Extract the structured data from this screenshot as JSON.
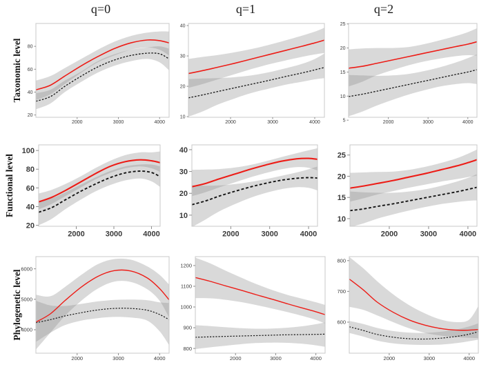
{
  "figure": {
    "background": "#ffffff",
    "colors": {
      "red_line": "#ed1c16",
      "dashed_line": "#141414",
      "band_fill": "#888888",
      "panel_border": "#c8c8c8",
      "tick_color": "#8a8a8a",
      "tick_label": "#3a3a3a"
    },
    "column_headers": [
      {
        "label": "q=0"
      },
      {
        "label": "q=1"
      },
      {
        "label": "q=2"
      }
    ],
    "row_labels": [
      {
        "label": "Taxonomic level"
      },
      {
        "label": "Functional level"
      },
      {
        "label": "Phylogenetic level"
      }
    ]
  },
  "chart_data": [
    {
      "id": "taxonomic-q0",
      "type": "line",
      "row": 0,
      "col": 0,
      "row_label": "Taxonomic level",
      "col_label": "q=0",
      "xlim": [
        1000,
        4230
      ],
      "x_ticks": [
        2000,
        3000,
        4000
      ],
      "ylim": [
        18,
        100
      ],
      "y_ticks": [
        20,
        40,
        60,
        80
      ],
      "x": [
        1000,
        1350,
        1700,
        2100,
        2500,
        2900,
        3300,
        3700,
        4000,
        4230
      ],
      "series": [
        {
          "name": "red-solid-line",
          "style": "solid",
          "y": [
            42,
            46,
            54,
            63,
            71,
            78,
            83,
            85.5,
            85,
            83
          ],
          "band_lo": [
            33,
            38,
            47,
            57,
            66,
            72,
            77,
            79,
            77,
            72
          ],
          "band_hi": [
            50,
            54,
            61,
            69,
            77,
            84,
            89,
            92,
            93,
            93
          ]
        },
        {
          "name": "black-dashed-line",
          "style": "dashed",
          "y": [
            32,
            36,
            45,
            54,
            62,
            68,
            72,
            74,
            73.5,
            69
          ],
          "band_lo": [
            25,
            30,
            40,
            49,
            57,
            63,
            67,
            69,
            66,
            59
          ],
          "band_hi": [
            39,
            42,
            50,
            58,
            67,
            73,
            77,
            79,
            80,
            78
          ]
        }
      ]
    },
    {
      "id": "taxonomic-q1",
      "type": "line",
      "row": 0,
      "col": 1,
      "row_label": "Taxonomic level",
      "col_label": "q=1",
      "xlim": [
        1000,
        4230
      ],
      "x_ticks": [
        2000,
        3000,
        4000
      ],
      "ylim": [
        9.8,
        40.7
      ],
      "y_ticks": [
        10,
        20,
        30,
        40
      ],
      "x": [
        1000,
        1350,
        1700,
        2100,
        2500,
        2900,
        3300,
        3700,
        4000,
        4230
      ],
      "series": [
        {
          "name": "red-solid-line",
          "style": "solid",
          "y": [
            24.2,
            25.2,
            26.3,
            27.6,
            29,
            30.4,
            31.8,
            33.2,
            34.3,
            35.2
          ],
          "band_lo": [
            19.5,
            20.8,
            22.3,
            24,
            25.7,
            27.2,
            28.5,
            29.7,
            30.5,
            31
          ],
          "band_hi": [
            29,
            29.7,
            30.3,
            31.2,
            32.3,
            33.6,
            35.1,
            36.7,
            38,
            39.3
          ]
        },
        {
          "name": "black-dashed-line",
          "style": "dashed",
          "y": [
            16.2,
            17.2,
            18.3,
            19.5,
            20.7,
            21.9,
            23.2,
            24.4,
            25.4,
            26.2
          ],
          "band_lo": [
            10,
            11.8,
            14,
            16,
            17.8,
            19.2,
            20.5,
            21.5,
            22.3,
            22.7
          ],
          "band_hi": [
            22.4,
            22.6,
            22.7,
            23,
            23.6,
            24.6,
            25.9,
            27.4,
            29,
            30.8
          ]
        }
      ]
    },
    {
      "id": "taxonomic-q2",
      "type": "line",
      "row": 0,
      "col": 2,
      "row_label": "Taxonomic level",
      "col_label": "q=2",
      "xlim": [
        1000,
        4230
      ],
      "x_ticks": [
        2000,
        3000,
        4000
      ],
      "ylim": [
        5.6,
        25.1
      ],
      "y_ticks": [
        5,
        10,
        15,
        20,
        25
      ],
      "x": [
        1000,
        1350,
        1700,
        2100,
        2500,
        2900,
        3300,
        3700,
        4000,
        4230
      ],
      "series": [
        {
          "name": "red-solid-line",
          "style": "solid",
          "y": [
            15.8,
            16.2,
            16.8,
            17.5,
            18.2,
            18.9,
            19.6,
            20.3,
            20.8,
            21.3
          ],
          "band_lo": [
            12,
            13,
            14.3,
            15.4,
            16.4,
            17.2,
            17.8,
            18.3,
            18.5,
            18.4
          ],
          "band_hi": [
            19.7,
            19.9,
            20,
            20,
            20.2,
            20.8,
            21.6,
            22.5,
            23.3,
            24.1
          ]
        },
        {
          "name": "black-dashed-line",
          "style": "dashed",
          "y": [
            9.9,
            10.4,
            11,
            11.7,
            12.4,
            13.1,
            13.8,
            14.5,
            15,
            15.5
          ],
          "band_lo": [
            5.8,
            6.8,
            8,
            9.2,
            10.3,
            11.2,
            12,
            12.5,
            12.7,
            12.5
          ],
          "band_hi": [
            14.4,
            14.3,
            14.2,
            14.3,
            14.6,
            15.2,
            16,
            17,
            17.9,
            18.7
          ]
        }
      ]
    },
    {
      "id": "functional-q0",
      "type": "line",
      "row": 1,
      "col": 0,
      "row_label": "Functional level",
      "col_label": "q=0",
      "xlim": [
        1000,
        4230
      ],
      "x_ticks": [
        2000,
        3000,
        4000
      ],
      "ylim": [
        19,
        106
      ],
      "y_ticks": [
        20,
        40,
        60,
        80,
        100
      ],
      "x": [
        1000,
        1350,
        1700,
        2100,
        2500,
        2900,
        3300,
        3700,
        4000,
        4230
      ],
      "series": [
        {
          "name": "red-solid-line",
          "style": "solid",
          "y": [
            45,
            50,
            57,
            66,
            75,
            83,
            88,
            90,
            89,
            87
          ],
          "band_lo": [
            37,
            43,
            51,
            60,
            69,
            76,
            81,
            83,
            81,
            77
          ],
          "band_hi": [
            54,
            58,
            64,
            72,
            81,
            89,
            95,
            98,
            98,
            99
          ]
        },
        {
          "name": "black-dashed-line",
          "style": "dashed",
          "y": [
            34,
            39,
            47,
            56,
            64,
            71,
            76,
            78,
            76.5,
            72
          ],
          "band_lo": [
            20,
            27,
            37,
            47,
            56,
            63,
            68,
            70,
            67,
            61
          ],
          "band_hi": [
            46,
            49,
            55,
            63,
            71,
            78,
            83,
            85,
            85,
            83
          ]
        }
      ]
    },
    {
      "id": "functional-q1",
      "type": "line",
      "row": 1,
      "col": 1,
      "row_label": "Functional level",
      "col_label": "q=1",
      "xlim": [
        1000,
        4230
      ],
      "x_ticks": [
        2000,
        3000,
        4000
      ],
      "ylim": [
        4.9,
        42.2
      ],
      "y_ticks": [
        10,
        20,
        30,
        40
      ],
      "x": [
        1000,
        1350,
        1700,
        2100,
        2500,
        2900,
        3300,
        3700,
        4000,
        4230
      ],
      "series": [
        {
          "name": "red-solid-line",
          "style": "solid",
          "y": [
            23,
            24.5,
            26.6,
            28.8,
            31,
            33,
            34.7,
            35.8,
            36,
            35.6
          ],
          "band_lo": [
            18.7,
            20.5,
            22.7,
            25,
            27.3,
            29.3,
            31,
            32,
            31.7,
            30.5
          ],
          "band_hi": [
            30.8,
            30.9,
            31.1,
            31.8,
            33,
            34.7,
            36.6,
            38.4,
            39.7,
            40.7
          ]
        },
        {
          "name": "black-dashed-line",
          "style": "dashed",
          "y": [
            14.8,
            16.5,
            18.7,
            20.9,
            22.9,
            24.6,
            26,
            26.9,
            27.2,
            27
          ],
          "band_lo": [
            4.5,
            8,
            11.7,
            15,
            17.9,
            20.2,
            21.9,
            22.8,
            22.5,
            21.3
          ],
          "band_hi": [
            23.7,
            23.5,
            23.6,
            24.2,
            25.2,
            26.5,
            28,
            29.6,
            31,
            32.3
          ]
        }
      ]
    },
    {
      "id": "functional-q2",
      "type": "line",
      "row": 1,
      "col": 2,
      "row_label": "Functional level",
      "col_label": "q=2",
      "xlim": [
        1000,
        4230
      ],
      "x_ticks": [
        2000,
        3000,
        4000
      ],
      "ylim": [
        8.2,
        27.4
      ],
      "y_ticks": [
        10,
        15,
        20,
        25
      ],
      "x": [
        1000,
        1350,
        1700,
        2100,
        2500,
        2900,
        3300,
        3700,
        4000,
        4230
      ],
      "series": [
        {
          "name": "red-solid-line",
          "style": "solid",
          "y": [
            17.2,
            17.7,
            18.3,
            19,
            19.8,
            20.6,
            21.5,
            22.4,
            23.2,
            23.9
          ],
          "band_lo": [
            14,
            14.8,
            15.7,
            16.5,
            17.3,
            18,
            18.7,
            19.3,
            19.8,
            20.1
          ],
          "band_hi": [
            20.8,
            20.9,
            21,
            21.1,
            21.5,
            22.2,
            23.1,
            24.2,
            25.3,
            26.3
          ]
        },
        {
          "name": "black-dashed-line",
          "style": "dashed",
          "y": [
            11.9,
            12.3,
            12.9,
            13.5,
            14.2,
            14.9,
            15.6,
            16.3,
            16.9,
            17.4
          ],
          "band_lo": [
            8,
            8.9,
            10,
            11,
            11.9,
            12.7,
            13.4,
            13.9,
            14.2,
            14.3
          ],
          "band_hi": [
            16.4,
            16.2,
            16.1,
            16.1,
            16.4,
            16.9,
            17.7,
            18.7,
            19.6,
            20.5
          ]
        }
      ]
    },
    {
      "id": "phylogenetic-q0",
      "type": "line",
      "row": 2,
      "col": 0,
      "row_label": "Phylogenetic level",
      "col_label": "q=0",
      "xlim": [
        1000,
        4230
      ],
      "x_ticks": [
        2000,
        3000,
        4000
      ],
      "ylim": [
        3230,
        6400
      ],
      "y_ticks": [
        4000,
        5000,
        6000
      ],
      "x": [
        1000,
        1350,
        1700,
        2100,
        2500,
        2900,
        3300,
        3700,
        4000,
        4230
      ],
      "series": [
        {
          "name": "red-solid-line",
          "style": "solid",
          "y": [
            4250,
            4520,
            4950,
            5400,
            5750,
            5940,
            5930,
            5700,
            5350,
            4980
          ],
          "band_lo": [
            3350,
            3900,
            4450,
            4950,
            5350,
            5580,
            5570,
            5330,
            4950,
            4400
          ],
          "band_hi": [
            5150,
            5100,
            5400,
            5800,
            6150,
            6320,
            6300,
            6080,
            5800,
            5480
          ]
        },
        {
          "name": "black-dashed-line",
          "style": "dashed",
          "y": [
            4230,
            4330,
            4450,
            4560,
            4650,
            4700,
            4700,
            4640,
            4500,
            4330
          ],
          "band_lo": [
            3600,
            3900,
            4150,
            4300,
            4380,
            4420,
            4400,
            4300,
            3950,
            3500
          ],
          "band_hi": [
            4950,
            4800,
            4780,
            4850,
            4930,
            4980,
            4990,
            4970,
            4900,
            4880
          ]
        }
      ]
    },
    {
      "id": "phylogenetic-q1",
      "type": "line",
      "row": 2,
      "col": 1,
      "row_label": "Phylogenetic level",
      "col_label": "q=1",
      "xlim": [
        1000,
        4230
      ],
      "x_ticks": [
        2000,
        3000,
        4000
      ],
      "ylim": [
        777,
        1243
      ],
      "y_ticks": [
        800,
        900,
        1000,
        1100,
        1200
      ],
      "x": [
        1000,
        1350,
        1700,
        2100,
        2500,
        2900,
        3300,
        3700,
        4000,
        4230
      ],
      "series": [
        {
          "name": "red-solid-line",
          "style": "solid",
          "y": [
            1142,
            1125,
            1105,
            1083,
            1060,
            1038,
            1015,
            993,
            977,
            963
          ],
          "band_lo": [
            1043,
            1042,
            1036,
            1025,
            1010,
            993,
            975,
            955,
            938,
            920
          ],
          "band_hi": [
            1238,
            1212,
            1180,
            1145,
            1112,
            1083,
            1058,
            1038,
            1023,
            1010
          ]
        },
        {
          "name": "black-dashed-line",
          "style": "dashed",
          "y": [
            854,
            856,
            858,
            860,
            862,
            864,
            866,
            867,
            868,
            869
          ],
          "band_lo": [
            797,
            805,
            812,
            820,
            826,
            828,
            827,
            822,
            815,
            808
          ],
          "band_hi": [
            912,
            908,
            903,
            898,
            895,
            896,
            900,
            908,
            917,
            925
          ]
        }
      ]
    },
    {
      "id": "phylogenetic-q2",
      "type": "line",
      "row": 2,
      "col": 2,
      "row_label": "Phylogenetic level",
      "col_label": "q=2",
      "xlim": [
        1000,
        4230
      ],
      "x_ticks": [
        2000,
        3000,
        4000
      ],
      "ylim": [
        499,
        813
      ],
      "y_ticks": [
        600,
        700,
        800
      ],
      "x": [
        1000,
        1350,
        1700,
        2100,
        2500,
        2900,
        3300,
        3700,
        4000,
        4230
      ],
      "series": [
        {
          "name": "red-solid-line",
          "style": "solid",
          "y": [
            740,
            705,
            665,
            632,
            607,
            590,
            579,
            574,
            574,
            576
          ],
          "band_lo": [
            650,
            640,
            622,
            600,
            580,
            565,
            556,
            551,
            549,
            548
          ],
          "band_hi": [
            812,
            775,
            733,
            690,
            655,
            628,
            608,
            600,
            608,
            652
          ]
        },
        {
          "name": "black-dashed-line",
          "style": "dashed",
          "y": [
            585,
            573,
            560,
            551,
            546,
            545,
            548,
            554,
            561,
            569
          ],
          "band_lo": [
            565,
            553,
            540,
            531,
            527,
            526,
            527,
            532,
            538,
            543
          ],
          "band_hi": [
            604,
            594,
            581,
            571,
            566,
            565,
            569,
            577,
            586,
            596
          ]
        }
      ]
    }
  ]
}
